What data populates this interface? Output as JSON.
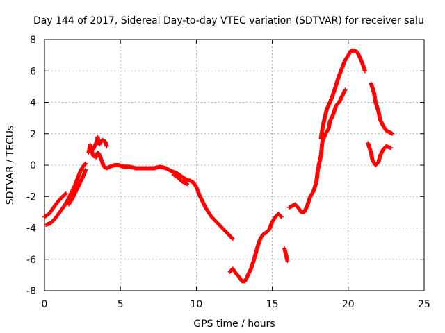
{
  "chart_data": {
    "type": "scatter",
    "title": "Day 144 of 2017, Sidereal Day-to-day VTEC variation (SDTVAR) for receiver salu",
    "xlabel": "GPS time / hours",
    "ylabel": "SDTVAR / TECUs",
    "xlim": [
      0,
      25
    ],
    "ylim": [
      -8,
      8
    ],
    "xticks": [
      "0",
      "5",
      "10",
      "15",
      "20",
      "25"
    ],
    "yticks": [
      "-8",
      "-6",
      "-4",
      "-2",
      "0",
      "2",
      "4",
      "6",
      "8"
    ],
    "grid": true,
    "marker": "+",
    "color": "#ff0000",
    "series": [
      {
        "name": "SDTVAR",
        "segments": [
          [
            [
              0,
              -3.3
            ],
            [
              0.3,
              -3.1
            ],
            [
              0.6,
              -2.7
            ],
            [
              0.9,
              -2.3
            ],
            [
              1.2,
              -2.0
            ],
            [
              1.4,
              -1.8
            ]
          ],
          [
            [
              0.1,
              -3.8
            ],
            [
              0.4,
              -3.7
            ],
            [
              0.7,
              -3.4
            ],
            [
              1.0,
              -3.0
            ],
            [
              1.3,
              -2.6
            ],
            [
              1.6,
              -2.1
            ],
            [
              1.8,
              -1.7
            ],
            [
              2.0,
              -1.3
            ],
            [
              2.2,
              -0.8
            ],
            [
              2.4,
              -0.3
            ],
            [
              2.6,
              0.0
            ],
            [
              2.7,
              0.1
            ]
          ],
          [
            [
              1.6,
              -2.5
            ],
            [
              1.8,
              -2.2
            ],
            [
              2.0,
              -1.8
            ],
            [
              2.2,
              -1.4
            ],
            [
              2.4,
              -1.0
            ],
            [
              2.6,
              -0.6
            ],
            [
              2.7,
              -0.3
            ]
          ],
          [
            [
              2.9,
              0.8
            ],
            [
              3.0,
              1.2
            ],
            [
              3.2,
              1.0
            ],
            [
              3.4,
              1.4
            ],
            [
              3.5,
              1.8
            ],
            [
              3.6,
              1.3
            ],
            [
              3.8,
              1.6
            ],
            [
              4.0,
              1.5
            ],
            [
              4.1,
              1.2
            ]
          ],
          [
            [
              3.0,
              1.3
            ],
            [
              3.2,
              0.6
            ],
            [
              3.4,
              0.5
            ],
            [
              3.5,
              0.8
            ],
            [
              3.6,
              0.7
            ],
            [
              3.8,
              0.2
            ],
            [
              3.9,
              -0.1
            ],
            [
              4.1,
              -0.2
            ],
            [
              4.3,
              -0.1
            ]
          ],
          [
            [
              4.3,
              -0.1
            ],
            [
              4.6,
              0.0
            ],
            [
              4.9,
              0.0
            ],
            [
              5.2,
              -0.1
            ],
            [
              5.6,
              -0.1
            ],
            [
              6.0,
              -0.2
            ],
            [
              6.4,
              -0.2
            ],
            [
              6.8,
              -0.2
            ],
            [
              7.2,
              -0.2
            ],
            [
              7.6,
              -0.1
            ],
            [
              8.0,
              -0.2
            ],
            [
              8.4,
              -0.4
            ],
            [
              8.7,
              -0.5
            ],
            [
              9.0,
              -0.7
            ],
            [
              9.3,
              -0.9
            ],
            [
              9.6,
              -1.0
            ],
            [
              9.8,
              -1.1
            ]
          ],
          [
            [
              8.5,
              -0.6
            ],
            [
              8.8,
              -0.8
            ],
            [
              9.0,
              -1.0
            ],
            [
              9.2,
              -1.1
            ],
            [
              9.4,
              -1.2
            ]
          ],
          [
            [
              9.8,
              -1.1
            ],
            [
              10.0,
              -1.4
            ],
            [
              10.2,
              -1.9
            ],
            [
              10.4,
              -2.3
            ],
            [
              10.6,
              -2.7
            ],
            [
              10.8,
              -3.0
            ],
            [
              11.0,
              -3.3
            ],
            [
              11.3,
              -3.6
            ],
            [
              11.6,
              -3.9
            ],
            [
              11.9,
              -4.2
            ],
            [
              12.2,
              -4.5
            ],
            [
              12.4,
              -4.7
            ]
          ],
          [
            [
              12.2,
              -6.8
            ],
            [
              12.4,
              -6.6
            ],
            [
              12.6,
              -6.9
            ],
            [
              12.8,
              -7.1
            ],
            [
              13.0,
              -7.4
            ],
            [
              13.2,
              -7.4
            ],
            [
              13.4,
              -7.0
            ],
            [
              13.6,
              -6.6
            ],
            [
              13.8,
              -6.0
            ],
            [
              14.0,
              -5.3
            ],
            [
              14.2,
              -4.7
            ],
            [
              14.4,
              -4.4
            ],
            [
              14.6,
              -4.3
            ],
            [
              14.8,
              -4.1
            ],
            [
              15.0,
              -3.6
            ],
            [
              15.2,
              -3.3
            ],
            [
              15.4,
              -3.1
            ],
            [
              15.6,
              -3.3
            ]
          ],
          [
            [
              15.8,
              -5.3
            ],
            [
              15.9,
              -5.7
            ],
            [
              16.0,
              -6.1
            ]
          ],
          [
            [
              16.1,
              -2.7
            ],
            [
              16.3,
              -2.6
            ],
            [
              16.5,
              -2.5
            ],
            [
              16.7,
              -2.7
            ],
            [
              16.9,
              -3.0
            ],
            [
              17.1,
              -3.0
            ],
            [
              17.3,
              -2.6
            ],
            [
              17.5,
              -2.0
            ],
            [
              17.7,
              -1.7
            ],
            [
              17.9,
              -1.1
            ],
            [
              18.0,
              -0.3
            ],
            [
              18.2,
              0.6
            ],
            [
              18.3,
              1.5
            ],
            [
              18.5,
              2.0
            ],
            [
              18.7,
              2.3
            ],
            [
              18.8,
              2.8
            ],
            [
              19.0,
              3.2
            ],
            [
              19.2,
              3.8
            ],
            [
              19.4,
              4.0
            ],
            [
              19.6,
              4.4
            ],
            [
              19.8,
              4.8
            ]
          ],
          [
            [
              18.2,
              1.7
            ],
            [
              18.3,
              2.3
            ],
            [
              18.4,
              2.8
            ],
            [
              18.5,
              3.2
            ],
            [
              18.6,
              3.6
            ],
            [
              18.8,
              4.0
            ],
            [
              19.0,
              4.5
            ],
            [
              19.2,
              5.1
            ],
            [
              19.4,
              5.7
            ],
            [
              19.6,
              6.2
            ],
            [
              19.8,
              6.7
            ],
            [
              20.0,
              7.0
            ],
            [
              20.2,
              7.3
            ],
            [
              20.4,
              7.3
            ],
            [
              20.6,
              7.2
            ],
            [
              20.8,
              6.8
            ],
            [
              21.0,
              6.3
            ],
            [
              21.1,
              6.0
            ]
          ],
          [
            [
              21.3,
              1.4
            ],
            [
              21.5,
              0.8
            ],
            [
              21.6,
              0.3
            ],
            [
              21.8,
              0.0
            ],
            [
              22.0,
              0.2
            ],
            [
              22.1,
              0.6
            ],
            [
              22.3,
              1.0
            ],
            [
              22.5,
              1.2
            ],
            [
              22.8,
              1.1
            ]
          ],
          [
            [
              21.5,
              5.2
            ],
            [
              21.7,
              4.6
            ],
            [
              21.8,
              4.0
            ],
            [
              22.0,
              3.4
            ],
            [
              22.1,
              2.9
            ],
            [
              22.3,
              2.5
            ],
            [
              22.5,
              2.2
            ],
            [
              22.7,
              2.1
            ],
            [
              22.9,
              2.0
            ]
          ]
        ]
      }
    ]
  }
}
